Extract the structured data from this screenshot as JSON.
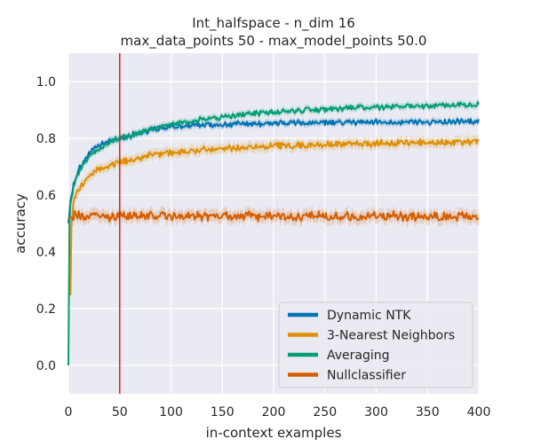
{
  "chart_data": {
    "type": "line",
    "title_line1": "Int_halfspace - n_dim 16",
    "title_line2": "max_data_points 50 - max_model_points 50.0",
    "xlabel": "in-context examples",
    "ylabel": "accuracy",
    "xlim": [
      0,
      400
    ],
    "ylim": [
      -0.1,
      1.1
    ],
    "x_ticks": [
      "0",
      "50",
      "100",
      "150",
      "200",
      "250",
      "300",
      "350",
      "400"
    ],
    "y_ticks": [
      "0.0",
      "0.2",
      "0.4",
      "0.6",
      "0.8",
      "1.0"
    ],
    "grid": true,
    "background": "#eaeaf2",
    "vline": {
      "x": 50,
      "color": "#d62728"
    },
    "legend_position": "lower-right",
    "series": [
      {
        "name": "Dynamic NTK",
        "color": "#0173b2",
        "x": [
          0,
          2,
          5,
          10,
          15,
          20,
          25,
          30,
          40,
          50,
          60,
          70,
          80,
          90,
          100,
          120,
          140,
          160,
          180,
          200,
          225,
          250,
          275,
          300,
          325,
          350,
          375,
          400
        ],
        "y": [
          0.5,
          0.58,
          0.64,
          0.69,
          0.72,
          0.745,
          0.76,
          0.775,
          0.79,
          0.8,
          0.81,
          0.82,
          0.83,
          0.835,
          0.84,
          0.845,
          0.848,
          0.85,
          0.852,
          0.853,
          0.854,
          0.855,
          0.856,
          0.857,
          0.858,
          0.858,
          0.858,
          0.858
        ]
      },
      {
        "name": "3-Nearest Neighbors",
        "color": "#de8f05",
        "x": [
          0,
          2,
          3,
          5,
          10,
          15,
          20,
          25,
          30,
          40,
          50,
          60,
          70,
          80,
          90,
          100,
          120,
          140,
          160,
          180,
          200,
          225,
          250,
          275,
          300,
          325,
          350,
          375,
          400
        ],
        "y": [
          0.25,
          0.25,
          0.5,
          0.58,
          0.62,
          0.645,
          0.665,
          0.68,
          0.69,
          0.705,
          0.715,
          0.725,
          0.732,
          0.74,
          0.745,
          0.75,
          0.757,
          0.762,
          0.766,
          0.77,
          0.773,
          0.776,
          0.778,
          0.78,
          0.782,
          0.784,
          0.785,
          0.786,
          0.787
        ]
      },
      {
        "name": "Averaging",
        "color": "#029e73",
        "x": [
          0,
          1,
          2,
          5,
          10,
          15,
          20,
          25,
          30,
          40,
          50,
          60,
          70,
          80,
          90,
          100,
          120,
          140,
          160,
          180,
          200,
          225,
          250,
          275,
          300,
          325,
          350,
          375,
          400
        ],
        "y": [
          0.0,
          0.5,
          0.57,
          0.63,
          0.68,
          0.71,
          0.735,
          0.75,
          0.765,
          0.785,
          0.8,
          0.81,
          0.82,
          0.83,
          0.84,
          0.85,
          0.86,
          0.87,
          0.88,
          0.887,
          0.893,
          0.898,
          0.902,
          0.906,
          0.91,
          0.913,
          0.916,
          0.918,
          0.92
        ]
      },
      {
        "name": "Nullclassifier",
        "color": "#d55e00",
        "x": [
          0,
          2,
          5,
          50,
          100,
          150,
          200,
          250,
          300,
          350,
          400
        ],
        "y": [
          0.52,
          0.52,
          0.525,
          0.525,
          0.525,
          0.525,
          0.525,
          0.525,
          0.525,
          0.525,
          0.525
        ]
      }
    ]
  }
}
